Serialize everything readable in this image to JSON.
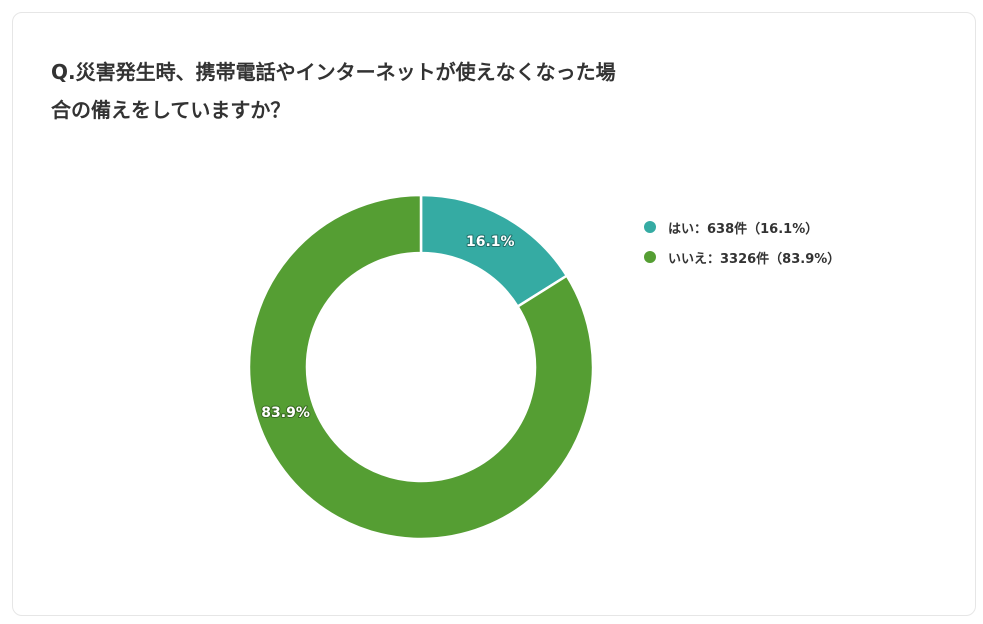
{
  "title": "Q.災害発生時、携帯電話やインターネットが使えなくなった場合の備えをしていますか？",
  "chart_data": {
    "type": "donut",
    "title": "Q.災害発生時、携帯電話やインターネットが使えなくなった場合の備えをしていますか？",
    "series": [
      {
        "name": "はい",
        "count": 638,
        "percent": 16.1,
        "slice_label": "16.1%",
        "legend_label": "はい：638件（16.1%）",
        "color": "#35aba3"
      },
      {
        "name": "いいえ",
        "count": 3326,
        "percent": 83.9,
        "slice_label": "83.9%",
        "legend_label": "いいえ：3326件（83.9%）",
        "color": "#559e33"
      }
    ],
    "legend_position": "right"
  }
}
